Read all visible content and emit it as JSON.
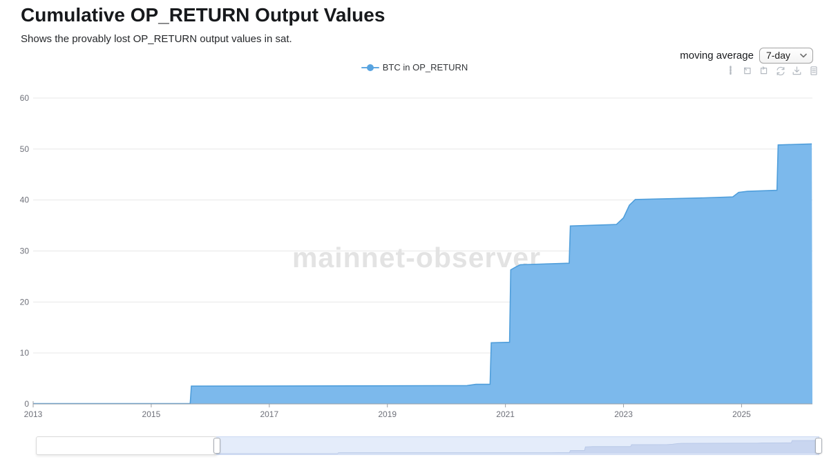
{
  "header": {
    "title": "Cumulative OP_RETURN Output Values",
    "subtitle": "Shows the provably lost OP_RETURN output values in sat."
  },
  "controls": {
    "moving_average_label": "moving average",
    "moving_average_value": "7-day"
  },
  "toolbar": {
    "icons": [
      "drag-handle",
      "zoom-select",
      "zoom-back",
      "restore",
      "download",
      "data-view"
    ]
  },
  "legend": {
    "label": "BTC in OP_RETURN",
    "color": "#57a3e0"
  },
  "watermark": "mainnet-observer",
  "chart_data": {
    "type": "area",
    "title": "Cumulative OP_RETURN Output Values",
    "xlabel": "",
    "ylabel": "",
    "xlim": [
      2013,
      2026.2
    ],
    "ylim": [
      0,
      60
    ],
    "x_ticks": [
      2013,
      2015,
      2017,
      2019,
      2021,
      2023,
      2025
    ],
    "y_ticks": [
      0,
      10,
      20,
      30,
      40,
      50,
      60
    ],
    "grid": true,
    "legend_position": "top-center",
    "step": true,
    "area_fill": "#7cb9ec",
    "line_color": "#4f9edb",
    "series": [
      {
        "name": "BTC in OP_RETURN",
        "points": [
          [
            2013.0,
            0.05
          ],
          [
            2015.66,
            0.05
          ],
          [
            2015.68,
            3.5
          ],
          [
            2018.5,
            3.55
          ],
          [
            2020.35,
            3.6
          ],
          [
            2020.5,
            3.85
          ],
          [
            2020.74,
            3.85
          ],
          [
            2020.76,
            12.0
          ],
          [
            2021.07,
            12.1
          ],
          [
            2021.09,
            26.3
          ],
          [
            2021.18,
            26.9
          ],
          [
            2021.25,
            27.3
          ],
          [
            2022.08,
            27.6
          ],
          [
            2022.1,
            34.9
          ],
          [
            2022.88,
            35.2
          ],
          [
            2023.0,
            36.5
          ],
          [
            2023.1,
            39.0
          ],
          [
            2023.2,
            40.1
          ],
          [
            2024.3,
            40.4
          ],
          [
            2024.85,
            40.6
          ],
          [
            2024.95,
            41.5
          ],
          [
            2025.1,
            41.7
          ],
          [
            2025.6,
            41.9
          ],
          [
            2025.62,
            50.8
          ],
          [
            2026.19,
            51.0
          ]
        ]
      }
    ],
    "datazoom": {
      "shadow_color": "#c9d6f0",
      "selected_fill": "#e4ecfa"
    }
  }
}
